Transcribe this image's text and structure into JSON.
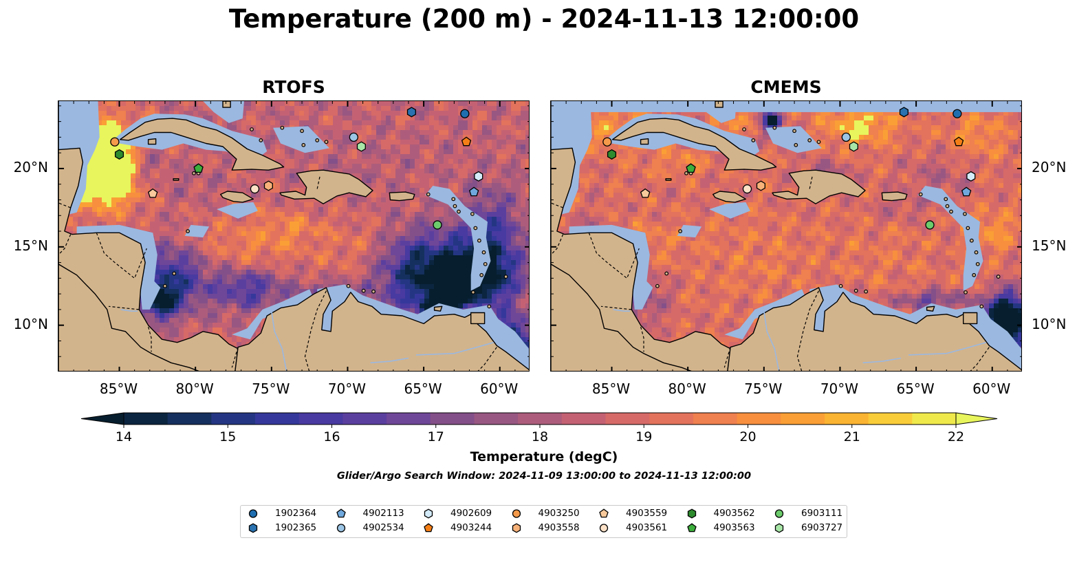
{
  "title": "Temperature (200 m) - 2024-11-13 12:00:00",
  "panels": [
    {
      "title": "RTOFS",
      "theme": "rtofs"
    },
    {
      "title": "CMEMS",
      "theme": "cmems"
    }
  ],
  "map_extent": {
    "lon": [
      -89,
      -58
    ],
    "lat": [
      7,
      24.3
    ]
  },
  "x_ticks": [
    {
      "lon": -85,
      "label": "85°W"
    },
    {
      "lon": -80,
      "label": "80°W"
    },
    {
      "lon": -75,
      "label": "75°W"
    },
    {
      "lon": -70,
      "label": "70°W"
    },
    {
      "lon": -65,
      "label": "65°W"
    },
    {
      "lon": -60,
      "label": "60°W"
    }
  ],
  "y_ticks": [
    {
      "lat": 20,
      "label": "20°N"
    },
    {
      "lat": 15,
      "label": "15°N"
    },
    {
      "lat": 10,
      "label": "10°N"
    }
  ],
  "colorbar": {
    "label": "Temperature (degC)",
    "min": 14,
    "max": 22,
    "step": 0.5,
    "tick_labels": [
      "14",
      "15",
      "16",
      "17",
      "18",
      "19",
      "20",
      "21",
      "22"
    ],
    "colors": [
      "#0b2540",
      "#15305e",
      "#243683",
      "#35389a",
      "#483aa0",
      "#5b3f9f",
      "#6f4798",
      "#845089",
      "#985782",
      "#ad5d7b",
      "#c46273",
      "#d66a68",
      "#e3735c",
      "#ef804f",
      "#f78f3f",
      "#fa9f35",
      "#fbb332",
      "#f9cc3a",
      "#f0e94c"
    ],
    "under_color": "#061e2e",
    "over_color": "#e8f55c"
  },
  "search_window": "Glider/Argo Search Window: 2024-11-09 13:00:00 to 2024-11-13 12:00:00",
  "colors": {
    "land": "#d2b48c",
    "shelf": "#9bb8e0",
    "deep_water": "#061e2e"
  },
  "floats": [
    {
      "id": "1902364",
      "shape": "circle",
      "color": "#1f6fb0",
      "lon": -62.3,
      "lat": 23.5
    },
    {
      "id": "1902365",
      "shape": "hexagon",
      "color": "#2a72b0",
      "lon": -65.8,
      "lat": 23.6
    },
    {
      "id": "4902113",
      "shape": "pentagon",
      "color": "#6fa8dc",
      "lon": -61.7,
      "lat": 18.5
    },
    {
      "id": "4902534",
      "shape": "circle",
      "color": "#9cc4e4",
      "lon": -69.6,
      "lat": 22.0
    },
    {
      "id": "4902609",
      "shape": "hexagon",
      "color": "#d4ecfa",
      "lon": -61.4,
      "lat": 19.5
    },
    {
      "id": "4903244",
      "shape": "pentagon",
      "color": "#f57f17",
      "lon": -62.2,
      "lat": 21.7
    },
    {
      "id": "4903250",
      "shape": "circle",
      "color": "#f59a4a",
      "lon": -85.3,
      "lat": 21.7
    },
    {
      "id": "4903558",
      "shape": "hexagon",
      "color": "#f7b27a",
      "lon": -75.2,
      "lat": 18.9
    },
    {
      "id": "4903559",
      "shape": "pentagon",
      "color": "#f8c99b",
      "lon": -82.8,
      "lat": 18.4
    },
    {
      "id": "4903561",
      "shape": "circle",
      "color": "#fde2c8",
      "lon": -76.1,
      "lat": 18.7
    },
    {
      "id": "4903562",
      "shape": "hexagon",
      "color": "#2e8b2e",
      "lon": -85.0,
      "lat": 20.9
    },
    {
      "id": "4903563",
      "shape": "pentagon",
      "color": "#3cae3c",
      "lon": -79.8,
      "lat": 20.0
    },
    {
      "id": "6903111",
      "shape": "circle",
      "color": "#6ccb6c",
      "lon": -64.1,
      "lat": 16.4
    },
    {
      "id": "6903727",
      "shape": "hexagon",
      "color": "#a8e6a8",
      "lon": -69.1,
      "lat": 21.4
    }
  ]
}
